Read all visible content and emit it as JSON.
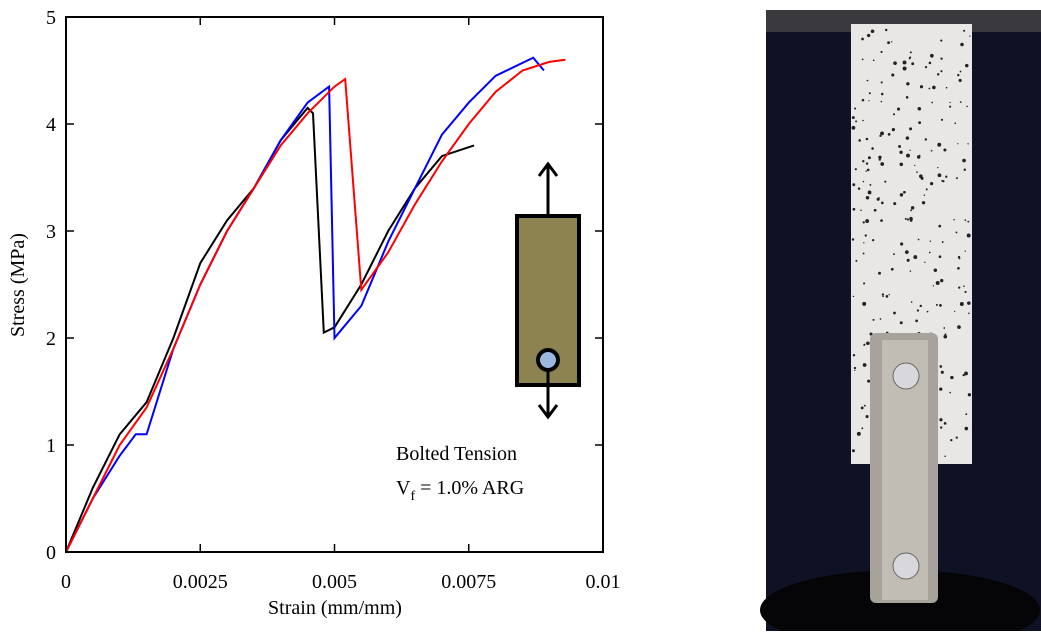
{
  "chart_data": {
    "type": "line",
    "xlabel": "Strain (mm/mm)",
    "ylabel": "Stress (MPa)",
    "xlim": [
      0,
      0.01
    ],
    "xticks": [
      0,
      0.0025,
      0.005,
      0.0075,
      0.01
    ],
    "ylim": [
      0,
      5
    ],
    "yticks": [
      0,
      1,
      2,
      3,
      4,
      5
    ],
    "annotation": {
      "line1": "Bolted Tension",
      "line2_main": "V",
      "line2_sub": "f",
      "line2_rest": " = 1.0% ARG"
    },
    "series": [
      {
        "color": "#000000",
        "x": [
          0,
          0.0005,
          0.001,
          0.0015,
          0.002,
          0.0025,
          0.003,
          0.0035,
          0.004,
          0.0045,
          0.0046,
          0.0048,
          0.005,
          0.0055,
          0.006,
          0.0065,
          0.007,
          0.0076
        ],
        "values": [
          0,
          0.6,
          1.1,
          1.4,
          2.0,
          2.7,
          3.1,
          3.4,
          3.85,
          4.15,
          4.1,
          2.05,
          2.1,
          2.5,
          3.0,
          3.4,
          3.7,
          3.8
        ]
      },
      {
        "color": "#0000ff",
        "x": [
          0,
          0.0005,
          0.001,
          0.0013,
          0.0015,
          0.002,
          0.0025,
          0.003,
          0.0035,
          0.004,
          0.0045,
          0.0049,
          0.005,
          0.0055,
          0.006,
          0.0065,
          0.007,
          0.0075,
          0.008,
          0.0087,
          0.0089
        ],
        "values": [
          0,
          0.5,
          0.9,
          1.1,
          1.1,
          1.9,
          2.5,
          3.0,
          3.4,
          3.85,
          4.2,
          4.35,
          2.0,
          2.3,
          2.9,
          3.4,
          3.9,
          4.2,
          4.45,
          4.62,
          4.5
        ]
      },
      {
        "color": "#ff0000",
        "x": [
          0,
          0.0005,
          0.001,
          0.0015,
          0.002,
          0.0025,
          0.003,
          0.0035,
          0.004,
          0.0045,
          0.005,
          0.0052,
          0.0055,
          0.006,
          0.0065,
          0.007,
          0.0075,
          0.008,
          0.0085,
          0.009,
          0.0093
        ],
        "values": [
          0,
          0.5,
          1.0,
          1.35,
          1.9,
          2.5,
          3.0,
          3.4,
          3.8,
          4.1,
          4.35,
          4.42,
          2.45,
          2.8,
          3.25,
          3.65,
          4.0,
          4.3,
          4.5,
          4.58,
          4.6
        ]
      }
    ]
  }
}
